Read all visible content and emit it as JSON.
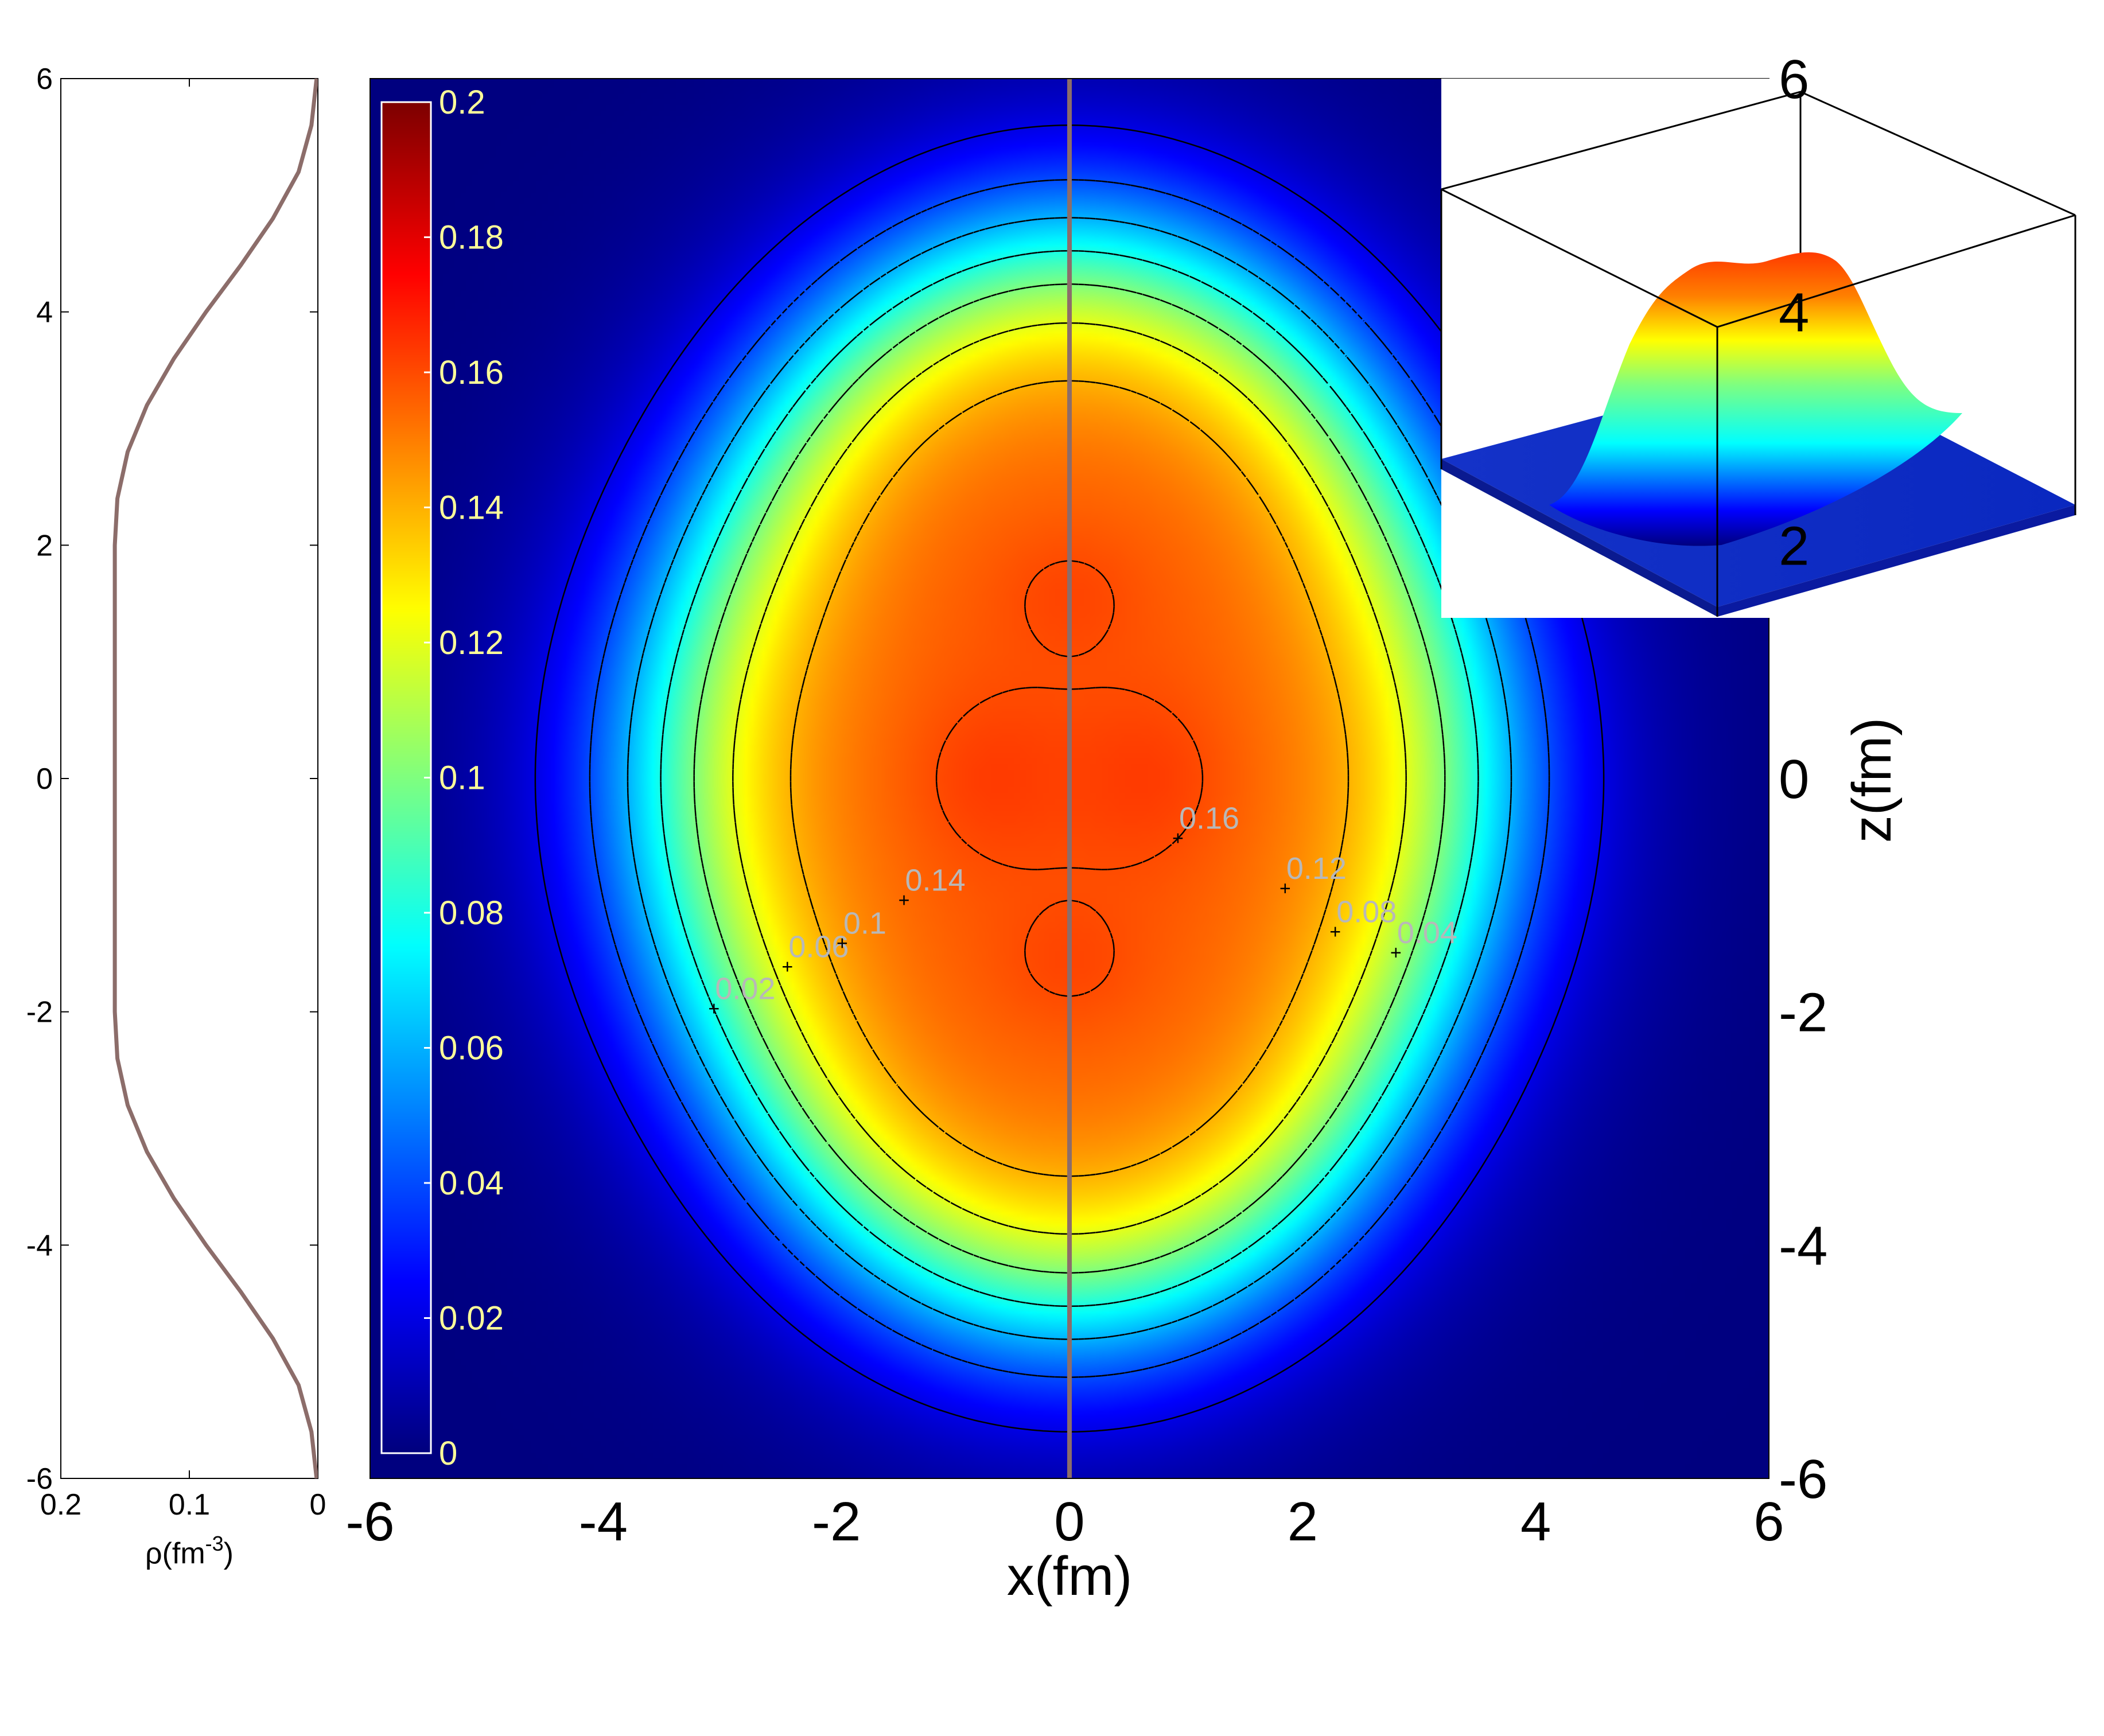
{
  "chart_data": [
    {
      "type": "line",
      "panel": "side-profile",
      "orientation": "vertical",
      "xlabel": "ρ(fm",
      "xlabel_sup": "-3",
      "xlabel_close": ")",
      "x_direction": "reversed",
      "xlim": [
        0.2,
        0
      ],
      "xticks": [
        "0.2",
        "0.1",
        "0"
      ],
      "xtick_values": [
        0.2,
        0.1,
        0
      ],
      "ylim": [
        -6,
        6
      ],
      "yticks": [
        "6",
        "4",
        "2",
        "0",
        "-2",
        "-4",
        "-6"
      ],
      "ytick_values": [
        6,
        4,
        2,
        0,
        -2,
        -4,
        -6
      ],
      "line_color": "#8c6d6a",
      "series": [
        {
          "z": [
            -6,
            -5.6,
            -5.2,
            -4.8,
            -4.4,
            -4.0,
            -3.6,
            -3.2,
            -2.8,
            -2.4,
            -2.0,
            -1.6,
            -1.2,
            -0.8,
            -0.4,
            0,
            0.4,
            0.8,
            1.2,
            1.6,
            2.0,
            2.4,
            2.8,
            3.2,
            3.6,
            4.0,
            4.4,
            4.8,
            5.2,
            5.6,
            6
          ],
          "rho": [
            0.001,
            0.005,
            0.015,
            0.035,
            0.06,
            0.087,
            0.112,
            0.133,
            0.148,
            0.156,
            0.158,
            0.158,
            0.158,
            0.158,
            0.158,
            0.158,
            0.158,
            0.158,
            0.158,
            0.158,
            0.158,
            0.156,
            0.148,
            0.133,
            0.112,
            0.087,
            0.06,
            0.035,
            0.015,
            0.005,
            0.001
          ]
        }
      ]
    },
    {
      "type": "heatmap",
      "panel": "main-density-map",
      "xlabel": "x(fm)",
      "ylabel": "z(fm)",
      "xlim": [
        -6,
        6
      ],
      "ylim": [
        -6,
        6
      ],
      "xticks": [
        "-6",
        "-4",
        "-2",
        "0",
        "2",
        "4",
        "6"
      ],
      "xtick_values": [
        -6,
        -4,
        -2,
        0,
        2,
        4,
        6
      ],
      "yticks": [
        "6",
        "4",
        "2",
        "0",
        "-2",
        "-4",
        "-6"
      ],
      "ytick_values": [
        6,
        4,
        2,
        0,
        -2,
        -4,
        -6
      ],
      "colormap": "jet",
      "colorbar": {
        "range": [
          0,
          0.2
        ],
        "ticks": [
          "0.2",
          "0.18",
          "0.16",
          "0.14",
          "0.12",
          "0.1",
          "0.08",
          "0.06",
          "0.04",
          "0.02",
          "0"
        ],
        "tick_values": [
          0.2,
          0.18,
          0.16,
          0.14,
          0.12,
          0.1,
          0.08,
          0.06,
          0.04,
          0.02,
          0
        ]
      },
      "contour_levels": [
        0.02,
        0.04,
        0.06,
        0.08,
        0.1,
        0.12,
        0.14,
        0.16
      ],
      "contour_labels": [
        {
          "text": "0.02",
          "x": -3.05,
          "z": -1.98
        },
        {
          "text": "0.06",
          "x": -2.42,
          "z": -1.62
        },
        {
          "text": "0.1",
          "x": -1.95,
          "z": -1.42
        },
        {
          "text": "0.14",
          "x": -1.42,
          "z": -1.05
        },
        {
          "text": "0.16",
          "x": 0.93,
          "z": -0.52
        },
        {
          "text": "0.12",
          "x": 1.85,
          "z": -0.95
        },
        {
          "text": "0.08",
          "x": 2.28,
          "z": -1.32
        },
        {
          "text": "0.04",
          "x": 2.8,
          "z": -1.5
        }
      ],
      "vertical_line": {
        "x": 0,
        "color": "#8c6d6a"
      }
    },
    {
      "type": "surface",
      "panel": "inset-3d",
      "colormap": "jet",
      "box": true
    }
  ]
}
